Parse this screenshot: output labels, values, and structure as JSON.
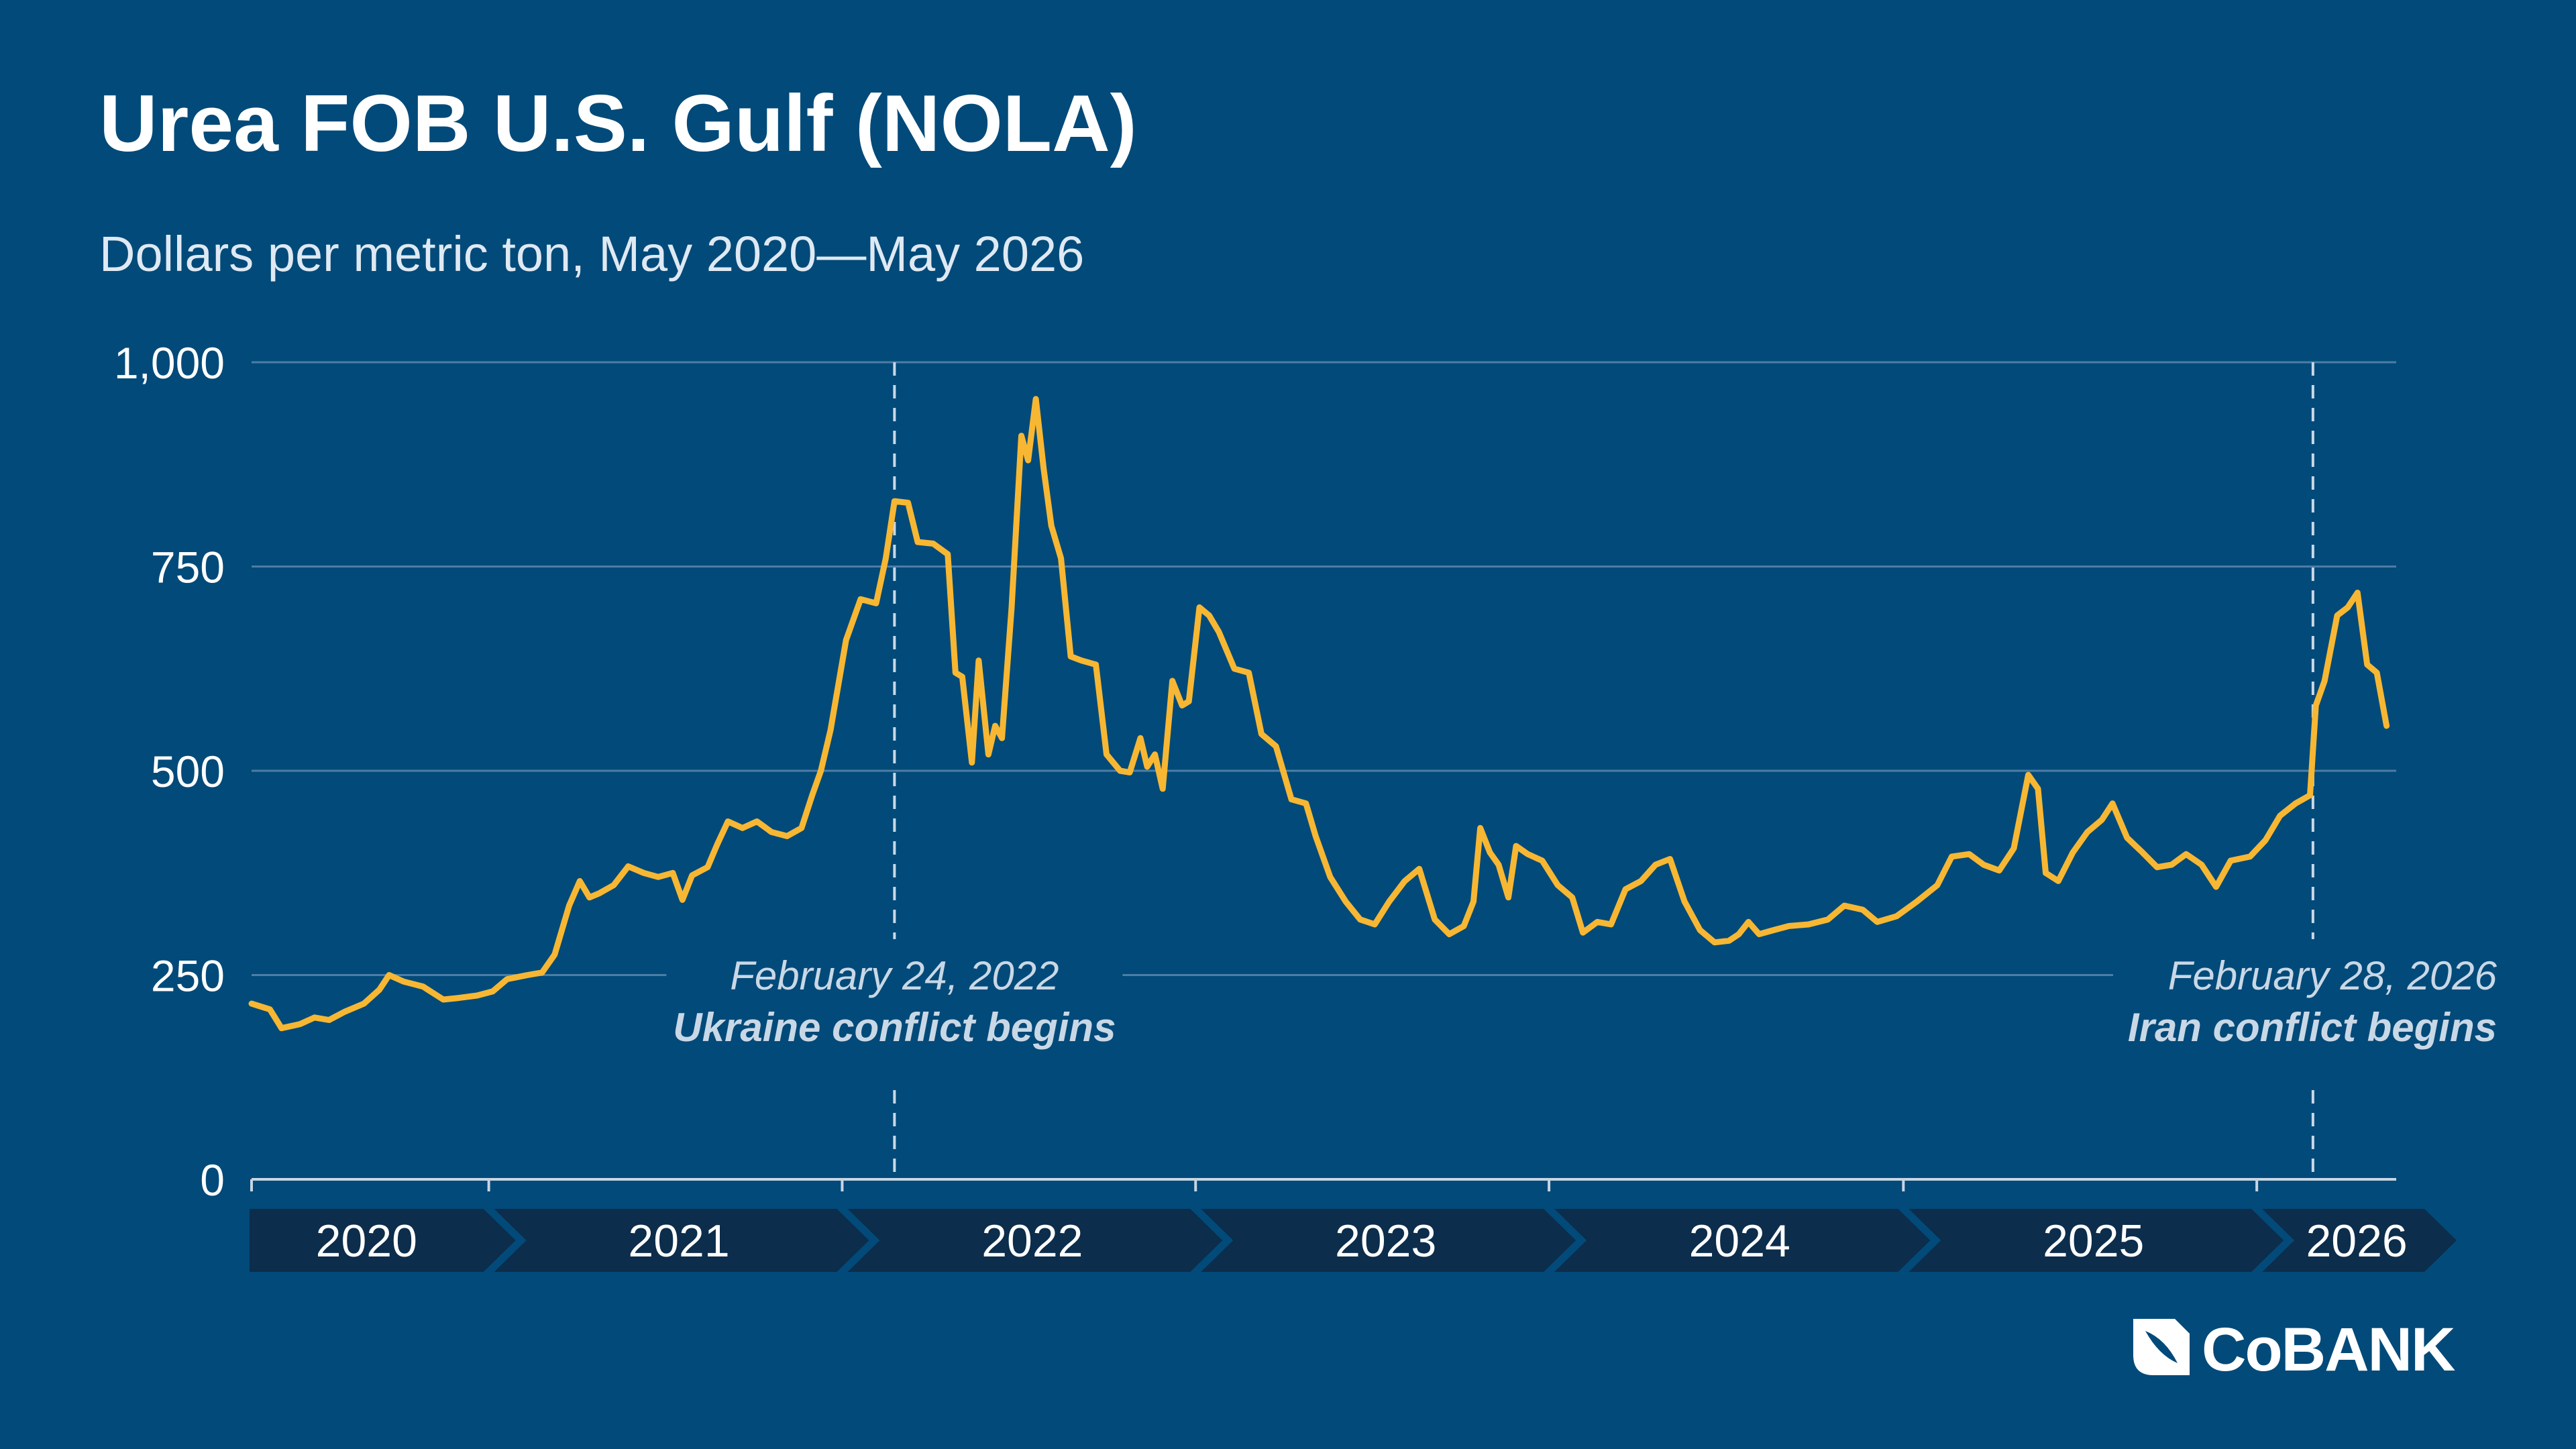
{
  "header": {
    "title": "Urea FOB U.S. Gulf (NOLA)",
    "subtitle": "Dollars per metric ton, May 2020—May 2026"
  },
  "colors": {
    "background": "#024a79",
    "line": "#f7b733",
    "grid": "#4c7ea6",
    "axis_band": "#0c2d4b",
    "annotation": "#c9d8e6"
  },
  "brand": {
    "logo_text": "CoBANK",
    "logo_icon": "cobank-logo-icon"
  },
  "chart_data": {
    "type": "line",
    "title": "Urea FOB U.S. Gulf (NOLA)",
    "ylabel": "",
    "xlabel": "",
    "ylim": [
      0,
      1000
    ],
    "xlim": [
      "2020-05-01",
      "2026-05-25"
    ],
    "y_ticks": [
      {
        "value": 0,
        "label": "0"
      },
      {
        "value": 250,
        "label": "250"
      },
      {
        "value": 500,
        "label": "500"
      },
      {
        "value": 750,
        "label": "750"
      },
      {
        "value": 1000,
        "label": "1,000"
      }
    ],
    "grid": true,
    "year_bands": [
      {
        "label": "2020",
        "start": "2020-05-01",
        "end": "2021-01-01"
      },
      {
        "label": "2021",
        "start": "2021-01-01",
        "end": "2022-01-01"
      },
      {
        "label": "2022",
        "start": "2022-01-01",
        "end": "2023-01-01"
      },
      {
        "label": "2023",
        "start": "2023-01-01",
        "end": "2024-01-01"
      },
      {
        "label": "2024",
        "start": "2024-01-01",
        "end": "2025-01-01"
      },
      {
        "label": "2025",
        "start": "2025-01-01",
        "end": "2026-01-01"
      },
      {
        "label": "2026",
        "start": "2026-01-01",
        "end": "2026-05-25"
      }
    ],
    "annotations": [
      {
        "date": "2022-02-24",
        "date_label": "February 24, 2022",
        "label": "Ukraine conflict begins"
      },
      {
        "date": "2026-02-28",
        "date_label": "February 28, 2026",
        "label": "Iran conflict begins"
      }
    ],
    "series": [
      {
        "points": [
          [
            "2020-05-01",
            215
          ],
          [
            "2020-05-20",
            208
          ],
          [
            "2020-06-01",
            185
          ],
          [
            "2020-06-20",
            190
          ],
          [
            "2020-07-05",
            198
          ],
          [
            "2020-07-20",
            195
          ],
          [
            "2020-08-05",
            205
          ],
          [
            "2020-08-25",
            215
          ],
          [
            "2020-09-10",
            232
          ],
          [
            "2020-09-20",
            250
          ],
          [
            "2020-10-05",
            242
          ],
          [
            "2020-10-25",
            236
          ],
          [
            "2020-11-15",
            220
          ],
          [
            "2020-12-01",
            222
          ],
          [
            "2020-12-20",
            225
          ],
          [
            "2021-01-05",
            230
          ],
          [
            "2021-01-20",
            245
          ],
          [
            "2021-02-10",
            250
          ],
          [
            "2021-02-25",
            253
          ],
          [
            "2021-03-10",
            275
          ],
          [
            "2021-03-25",
            335
          ],
          [
            "2021-04-05",
            365
          ],
          [
            "2021-04-15",
            345
          ],
          [
            "2021-04-25",
            350
          ],
          [
            "2021-05-10",
            360
          ],
          [
            "2021-05-25",
            383
          ],
          [
            "2021-06-10",
            375
          ],
          [
            "2021-06-25",
            370
          ],
          [
            "2021-07-10",
            375
          ],
          [
            "2021-07-20",
            342
          ],
          [
            "2021-07-30",
            372
          ],
          [
            "2021-08-15",
            382
          ],
          [
            "2021-08-25",
            410
          ],
          [
            "2021-09-05",
            438
          ],
          [
            "2021-09-20",
            430
          ],
          [
            "2021-10-05",
            438
          ],
          [
            "2021-10-20",
            425
          ],
          [
            "2021-11-05",
            420
          ],
          [
            "2021-11-20",
            430
          ],
          [
            "2021-12-01",
            470
          ],
          [
            "2021-12-10",
            500
          ],
          [
            "2021-12-20",
            550
          ],
          [
            "2022-01-05",
            660
          ],
          [
            "2022-01-20",
            710
          ],
          [
            "2022-02-05",
            705
          ],
          [
            "2022-02-15",
            760
          ],
          [
            "2022-02-24",
            830
          ],
          [
            "2022-03-10",
            828
          ],
          [
            "2022-03-20",
            780
          ],
          [
            "2022-04-05",
            778
          ],
          [
            "2022-04-20",
            765
          ],
          [
            "2022-04-28",
            620
          ],
          [
            "2022-05-05",
            615
          ],
          [
            "2022-05-15",
            510
          ],
          [
            "2022-05-22",
            635
          ],
          [
            "2022-06-01",
            520
          ],
          [
            "2022-06-08",
            555
          ],
          [
            "2022-06-15",
            540
          ],
          [
            "2022-06-25",
            700
          ],
          [
            "2022-07-05",
            910
          ],
          [
            "2022-07-12",
            880
          ],
          [
            "2022-07-20",
            955
          ],
          [
            "2022-07-28",
            870
          ],
          [
            "2022-08-05",
            800
          ],
          [
            "2022-08-15",
            760
          ],
          [
            "2022-08-25",
            640
          ],
          [
            "2022-09-05",
            635
          ],
          [
            "2022-09-20",
            630
          ],
          [
            "2022-10-01",
            520
          ],
          [
            "2022-10-15",
            500
          ],
          [
            "2022-10-25",
            498
          ],
          [
            "2022-11-05",
            540
          ],
          [
            "2022-11-12",
            505
          ],
          [
            "2022-11-20",
            520
          ],
          [
            "2022-11-28",
            478
          ],
          [
            "2022-12-08",
            610
          ],
          [
            "2022-12-18",
            580
          ],
          [
            "2022-12-25",
            585
          ],
          [
            "2023-01-05",
            700
          ],
          [
            "2023-01-15",
            690
          ],
          [
            "2023-01-25",
            670
          ],
          [
            "2023-02-10",
            625
          ],
          [
            "2023-02-25",
            620
          ],
          [
            "2023-03-10",
            545
          ],
          [
            "2023-03-25",
            530
          ],
          [
            "2023-04-10",
            465
          ],
          [
            "2023-04-25",
            460
          ],
          [
            "2023-05-05",
            420
          ],
          [
            "2023-05-20",
            370
          ],
          [
            "2023-06-05",
            340
          ],
          [
            "2023-06-20",
            318
          ],
          [
            "2023-07-05",
            312
          ],
          [
            "2023-07-20",
            340
          ],
          [
            "2023-08-05",
            365
          ],
          [
            "2023-08-20",
            380
          ],
          [
            "2023-09-05",
            318
          ],
          [
            "2023-09-20",
            300
          ],
          [
            "2023-10-05",
            310
          ],
          [
            "2023-10-15",
            340
          ],
          [
            "2023-10-22",
            430
          ],
          [
            "2023-11-01",
            400
          ],
          [
            "2023-11-10",
            385
          ],
          [
            "2023-11-20",
            345
          ],
          [
            "2023-11-28",
            408
          ],
          [
            "2023-12-10",
            398
          ],
          [
            "2023-12-25",
            390
          ],
          [
            "2024-01-10",
            360
          ],
          [
            "2024-01-25",
            345
          ],
          [
            "2024-02-05",
            302
          ],
          [
            "2024-02-20",
            315
          ],
          [
            "2024-03-05",
            312
          ],
          [
            "2024-03-20",
            355
          ],
          [
            "2024-04-05",
            365
          ],
          [
            "2024-04-20",
            385
          ],
          [
            "2024-05-05",
            392
          ],
          [
            "2024-05-20",
            340
          ],
          [
            "2024-06-05",
            305
          ],
          [
            "2024-06-20",
            290
          ],
          [
            "2024-07-05",
            292
          ],
          [
            "2024-07-15",
            300
          ],
          [
            "2024-07-25",
            315
          ],
          [
            "2024-08-05",
            300
          ],
          [
            "2024-08-20",
            305
          ],
          [
            "2024-09-05",
            310
          ],
          [
            "2024-09-25",
            312
          ],
          [
            "2024-10-15",
            318
          ],
          [
            "2024-11-01",
            335
          ],
          [
            "2024-11-20",
            330
          ],
          [
            "2024-12-05",
            315
          ],
          [
            "2024-12-25",
            322
          ],
          [
            "2025-01-15",
            340
          ],
          [
            "2025-02-05",
            360
          ],
          [
            "2025-02-20",
            395
          ],
          [
            "2025-03-10",
            398
          ],
          [
            "2025-03-25",
            385
          ],
          [
            "2025-04-10",
            378
          ],
          [
            "2025-04-25",
            405
          ],
          [
            "2025-05-10",
            495
          ],
          [
            "2025-05-20",
            478
          ],
          [
            "2025-05-28",
            375
          ],
          [
            "2025-06-10",
            365
          ],
          [
            "2025-06-25",
            400
          ],
          [
            "2025-07-10",
            425
          ],
          [
            "2025-07-25",
            440
          ],
          [
            "2025-08-05",
            460
          ],
          [
            "2025-08-20",
            418
          ],
          [
            "2025-09-05",
            400
          ],
          [
            "2025-09-20",
            382
          ],
          [
            "2025-10-05",
            385
          ],
          [
            "2025-10-20",
            398
          ],
          [
            "2025-11-05",
            385
          ],
          [
            "2025-11-20",
            358
          ],
          [
            "2025-12-05",
            390
          ],
          [
            "2025-12-25",
            395
          ],
          [
            "2026-01-10",
            415
          ],
          [
            "2026-01-25",
            445
          ],
          [
            "2026-02-10",
            460
          ],
          [
            "2026-02-25",
            470
          ],
          [
            "2026-03-03",
            580
          ],
          [
            "2026-03-12",
            610
          ],
          [
            "2026-03-25",
            690
          ],
          [
            "2026-04-05",
            700
          ],
          [
            "2026-04-15",
            718
          ],
          [
            "2026-04-25",
            630
          ],
          [
            "2026-05-05",
            620
          ],
          [
            "2026-05-15",
            555
          ]
        ]
      }
    ]
  }
}
